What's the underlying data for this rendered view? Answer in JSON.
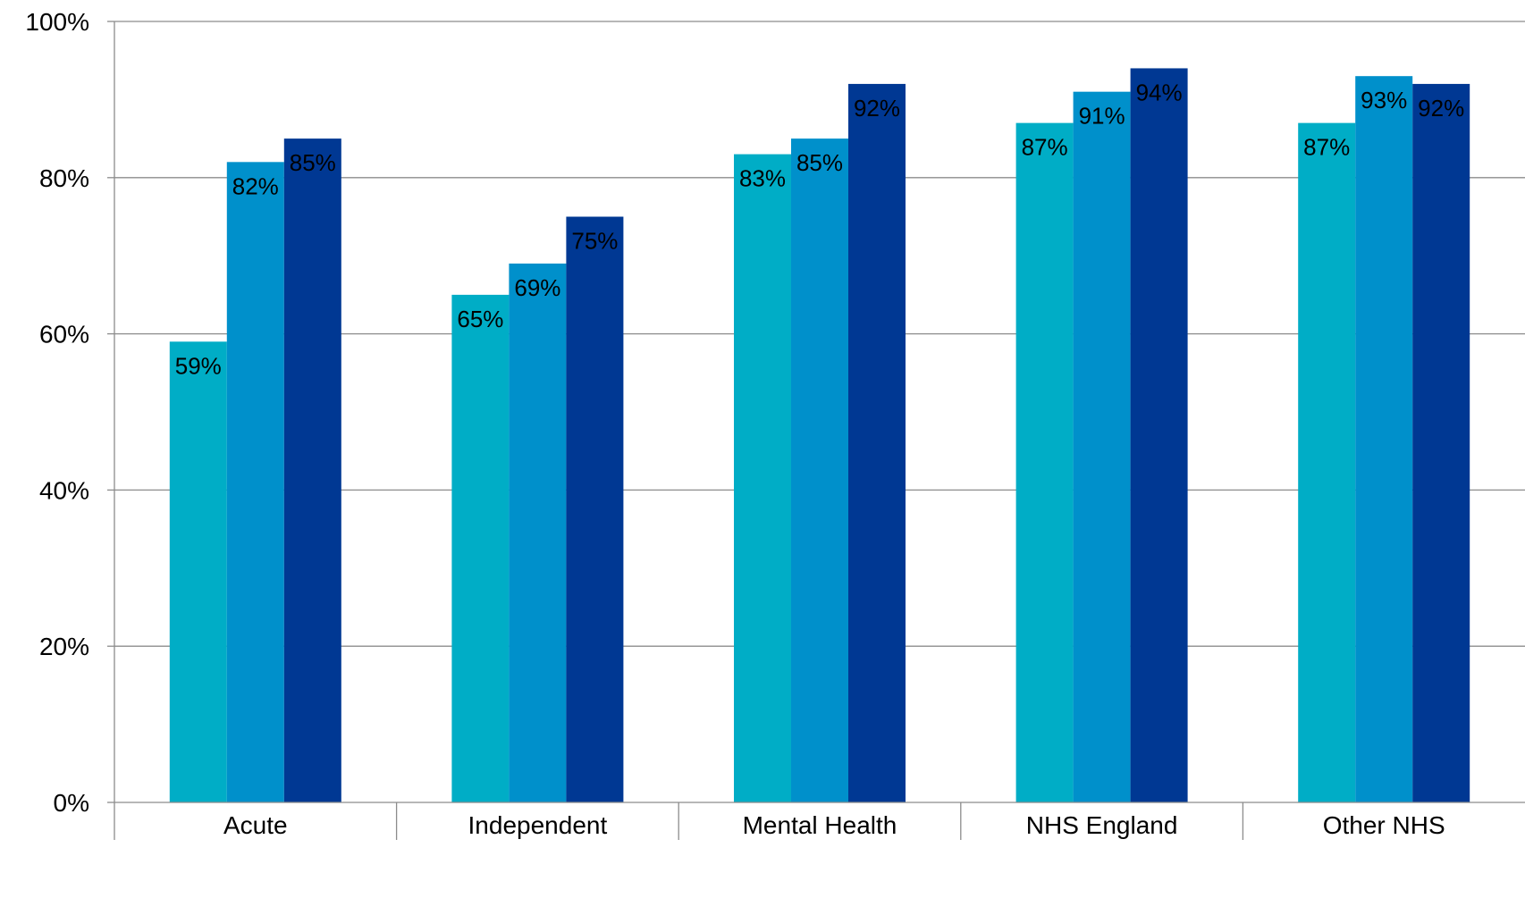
{
  "chart_data": {
    "type": "bar",
    "title": "",
    "xlabel": "",
    "ylabel": "",
    "categories": [
      "Acute",
      "Independent",
      "Mental Health",
      "NHS England",
      "Other NHS"
    ],
    "series": [
      {
        "color": "#00ADC6",
        "values": [
          59,
          65,
          83,
          87,
          87
        ]
      },
      {
        "color": "#0090CB",
        "values": [
          82,
          69,
          85,
          91,
          93
        ]
      },
      {
        "color": "#003893",
        "values": [
          85,
          75,
          92,
          94,
          92
        ]
      }
    ],
    "data_labels": [
      [
        "59%",
        "65%",
        "83%",
        "87%",
        "87%"
      ],
      [
        "82%",
        "69%",
        "85%",
        "91%",
        "93%"
      ],
      [
        "85%",
        "75%",
        "92%",
        "94%",
        "92%"
      ]
    ],
    "ylim": [
      0,
      100
    ],
    "yticks": [
      0,
      20,
      40,
      60,
      80,
      100
    ],
    "ytick_labels": [
      "0%",
      "20%",
      "40%",
      "60%",
      "80%",
      "100%"
    ],
    "grid": true,
    "legend": "none"
  }
}
